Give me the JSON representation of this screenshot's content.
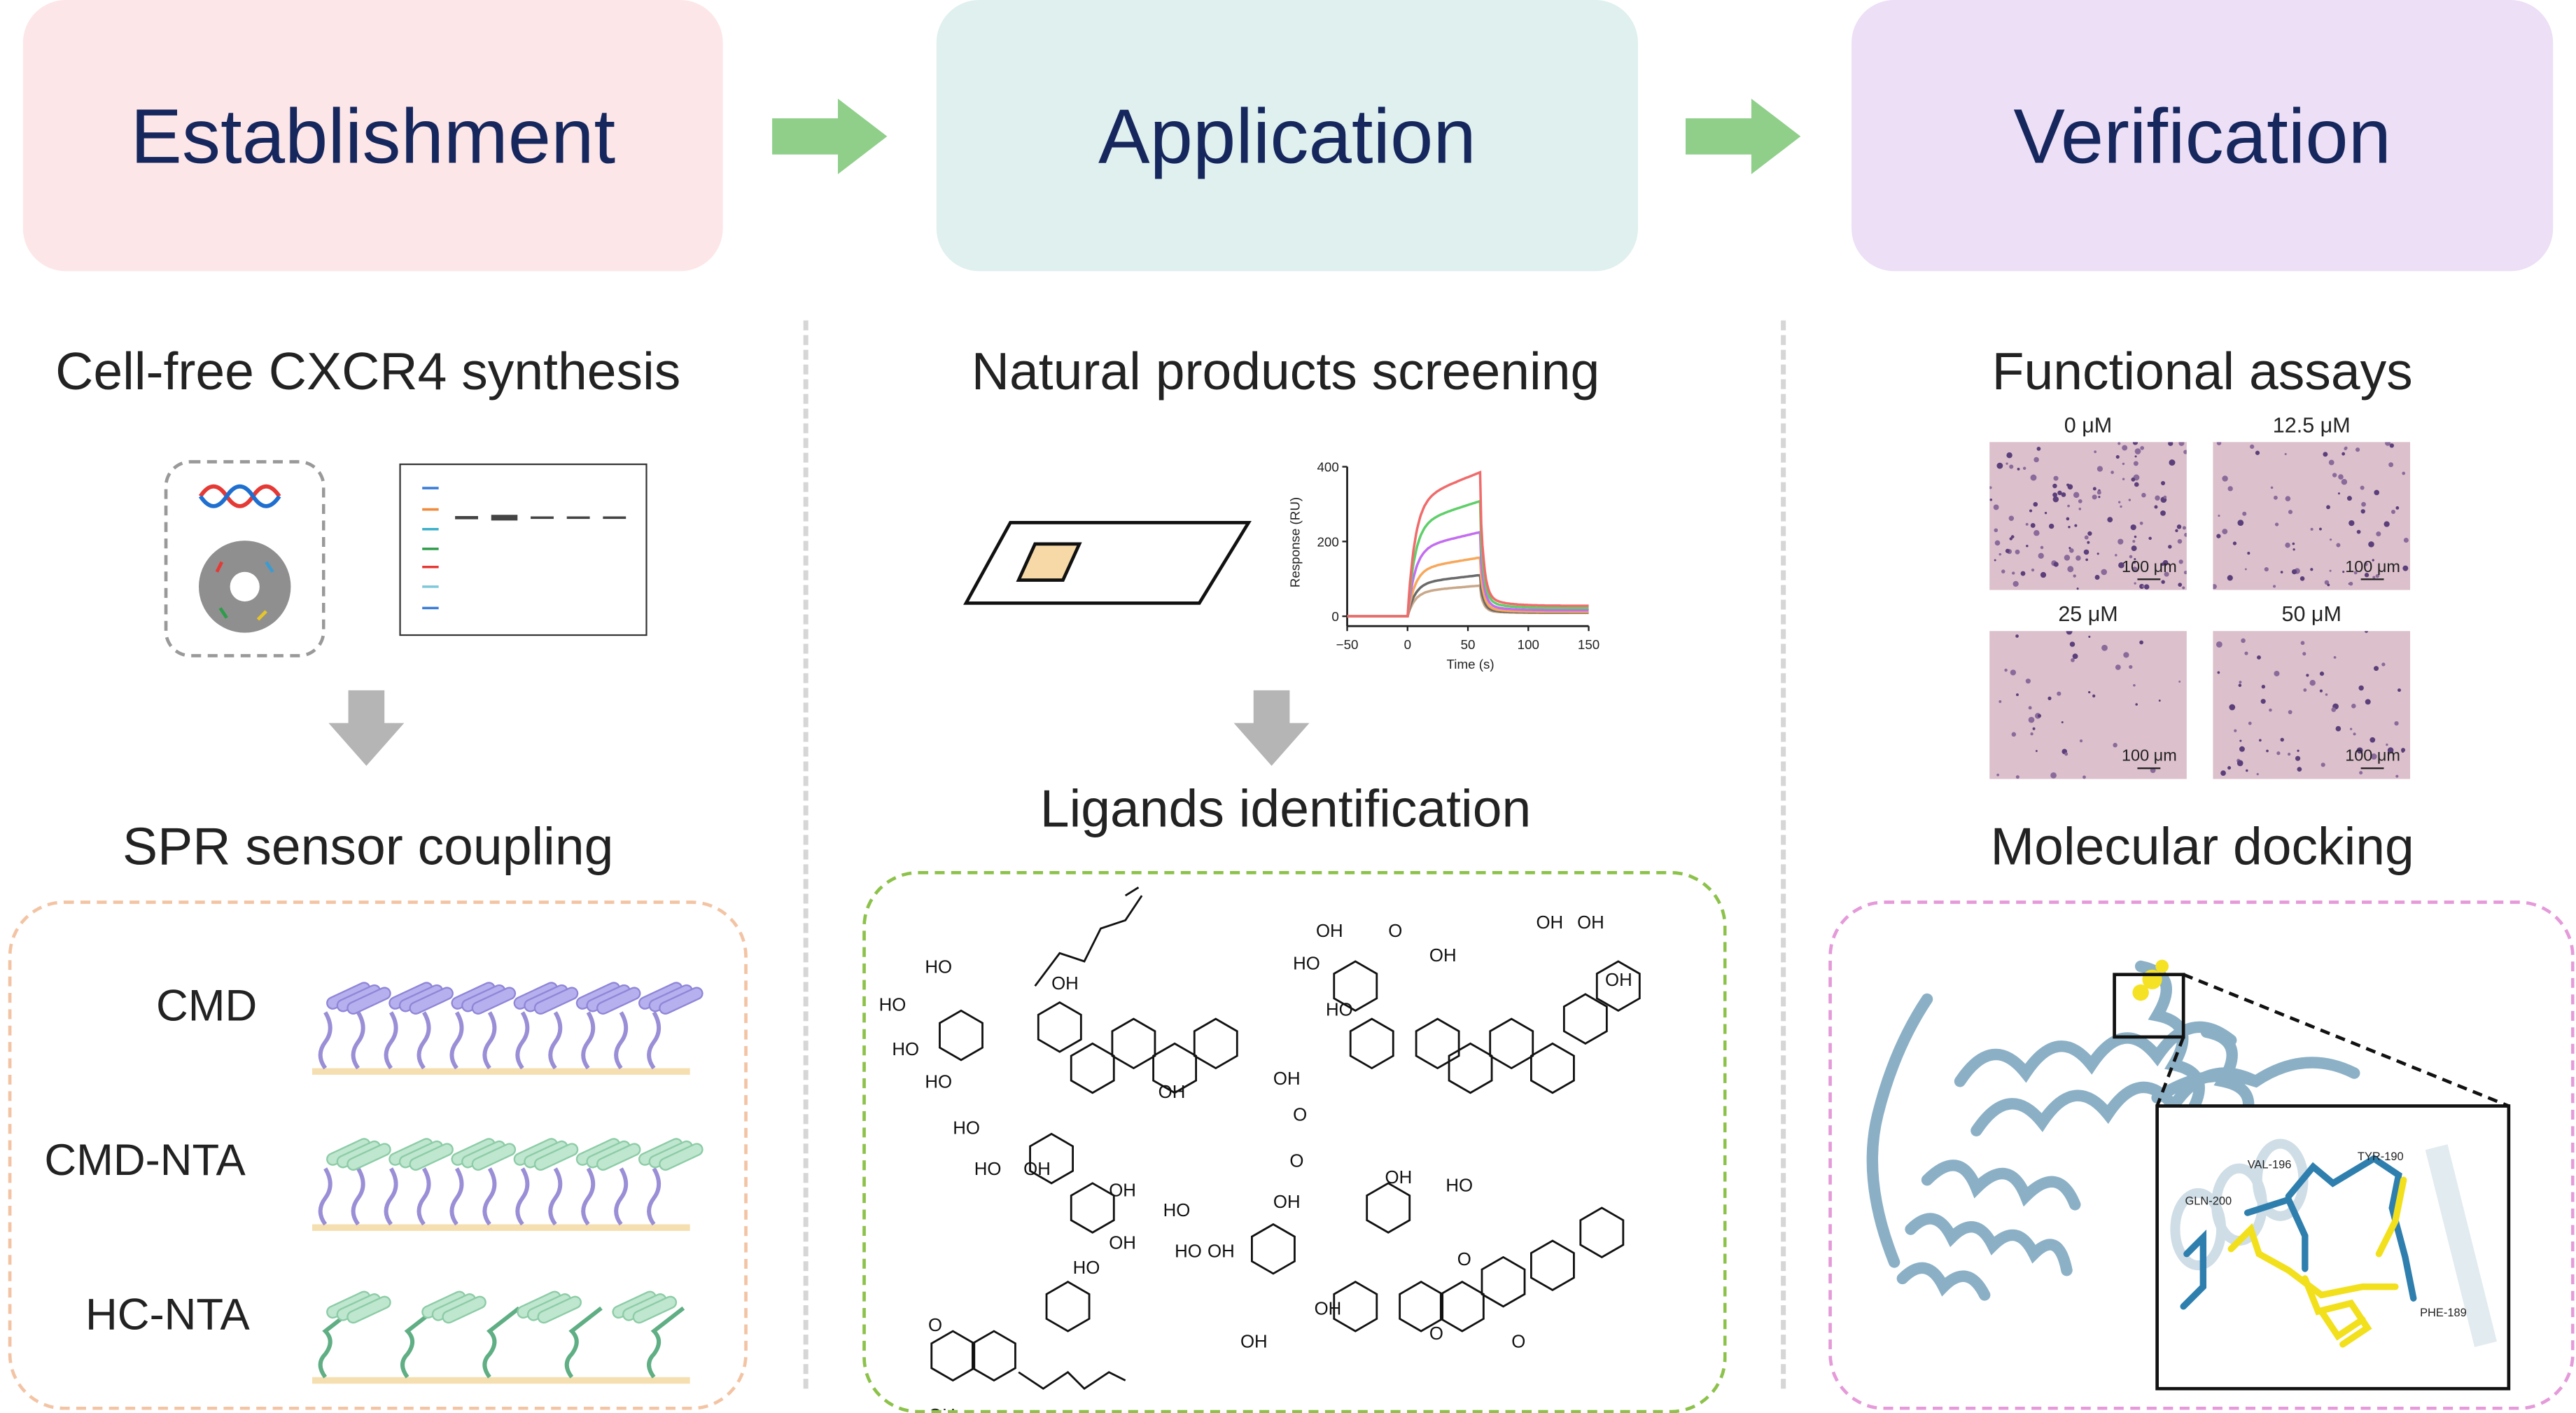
{
  "headers": [
    {
      "label": "Establishment",
      "color": "#fde6e8"
    },
    {
      "label": "Application",
      "color": "#dff0ee"
    },
    {
      "label": "Verification",
      "color": "#ecdff6"
    }
  ],
  "arrow_color": "#8fcf8a",
  "establishment": {
    "synthesis_title": "Cell-free CXCR4 synthesis",
    "coupling_title": "SPR sensor coupling",
    "chips": [
      "CMD",
      "CMD-NTA",
      "HC-NTA"
    ]
  },
  "application": {
    "screening_title": "Natural products screening",
    "ligands_title": "Ligands identification",
    "molecule_labels": [
      "HO",
      "HO",
      "HO",
      "HO",
      "OH",
      "OH",
      "HO",
      "HO",
      "OH",
      "OH",
      "OH",
      "HO",
      "HO",
      "OH",
      "O",
      "OH",
      "HO",
      "OH",
      "O",
      "O",
      "OH",
      "OH",
      "OH",
      "HO",
      "HO",
      "OH",
      "OH",
      "OH",
      "HO",
      "O",
      "OH",
      "OH",
      "O",
      "O",
      "O",
      "OH"
    ]
  },
  "chart_data": {
    "type": "line",
    "xlabel": "Time (s)",
    "ylabel": "Response (RU)",
    "xlim": [
      -50,
      150
    ],
    "ylim": [
      -20,
      400
    ],
    "xticks": [
      "−50",
      "0",
      "50",
      "100",
      "150"
    ],
    "yticks": [
      "0",
      "200",
      "400"
    ],
    "injection_start": 0,
    "injection_end": 60,
    "series": [
      {
        "color": "#f06b6b",
        "plateau": 385,
        "residual": 28
      },
      {
        "color": "#5fcf6a",
        "plateau": 308,
        "residual": 22
      },
      {
        "color": "#c36df0",
        "plateau": 225,
        "residual": 16
      },
      {
        "color": "#f7a85a",
        "plateau": 157,
        "residual": 12
      },
      {
        "color": "#6a6a6a",
        "plateau": 110,
        "residual": 10
      },
      {
        "color": "#c9a88a",
        "plateau": 82,
        "residual": 9
      }
    ]
  },
  "verification": {
    "assays_title": "Functional assays",
    "docking_title": "Molecular docking",
    "concentrations": [
      "0 μM",
      "12.5 μM",
      "25 μM",
      "50 μM"
    ],
    "scale_bar": "100 μm",
    "cell_density": [
      1.0,
      0.55,
      0.3,
      0.45
    ],
    "residues": [
      "GLN-200",
      "VAL-196",
      "TYR-190",
      "PHE-189"
    ]
  }
}
